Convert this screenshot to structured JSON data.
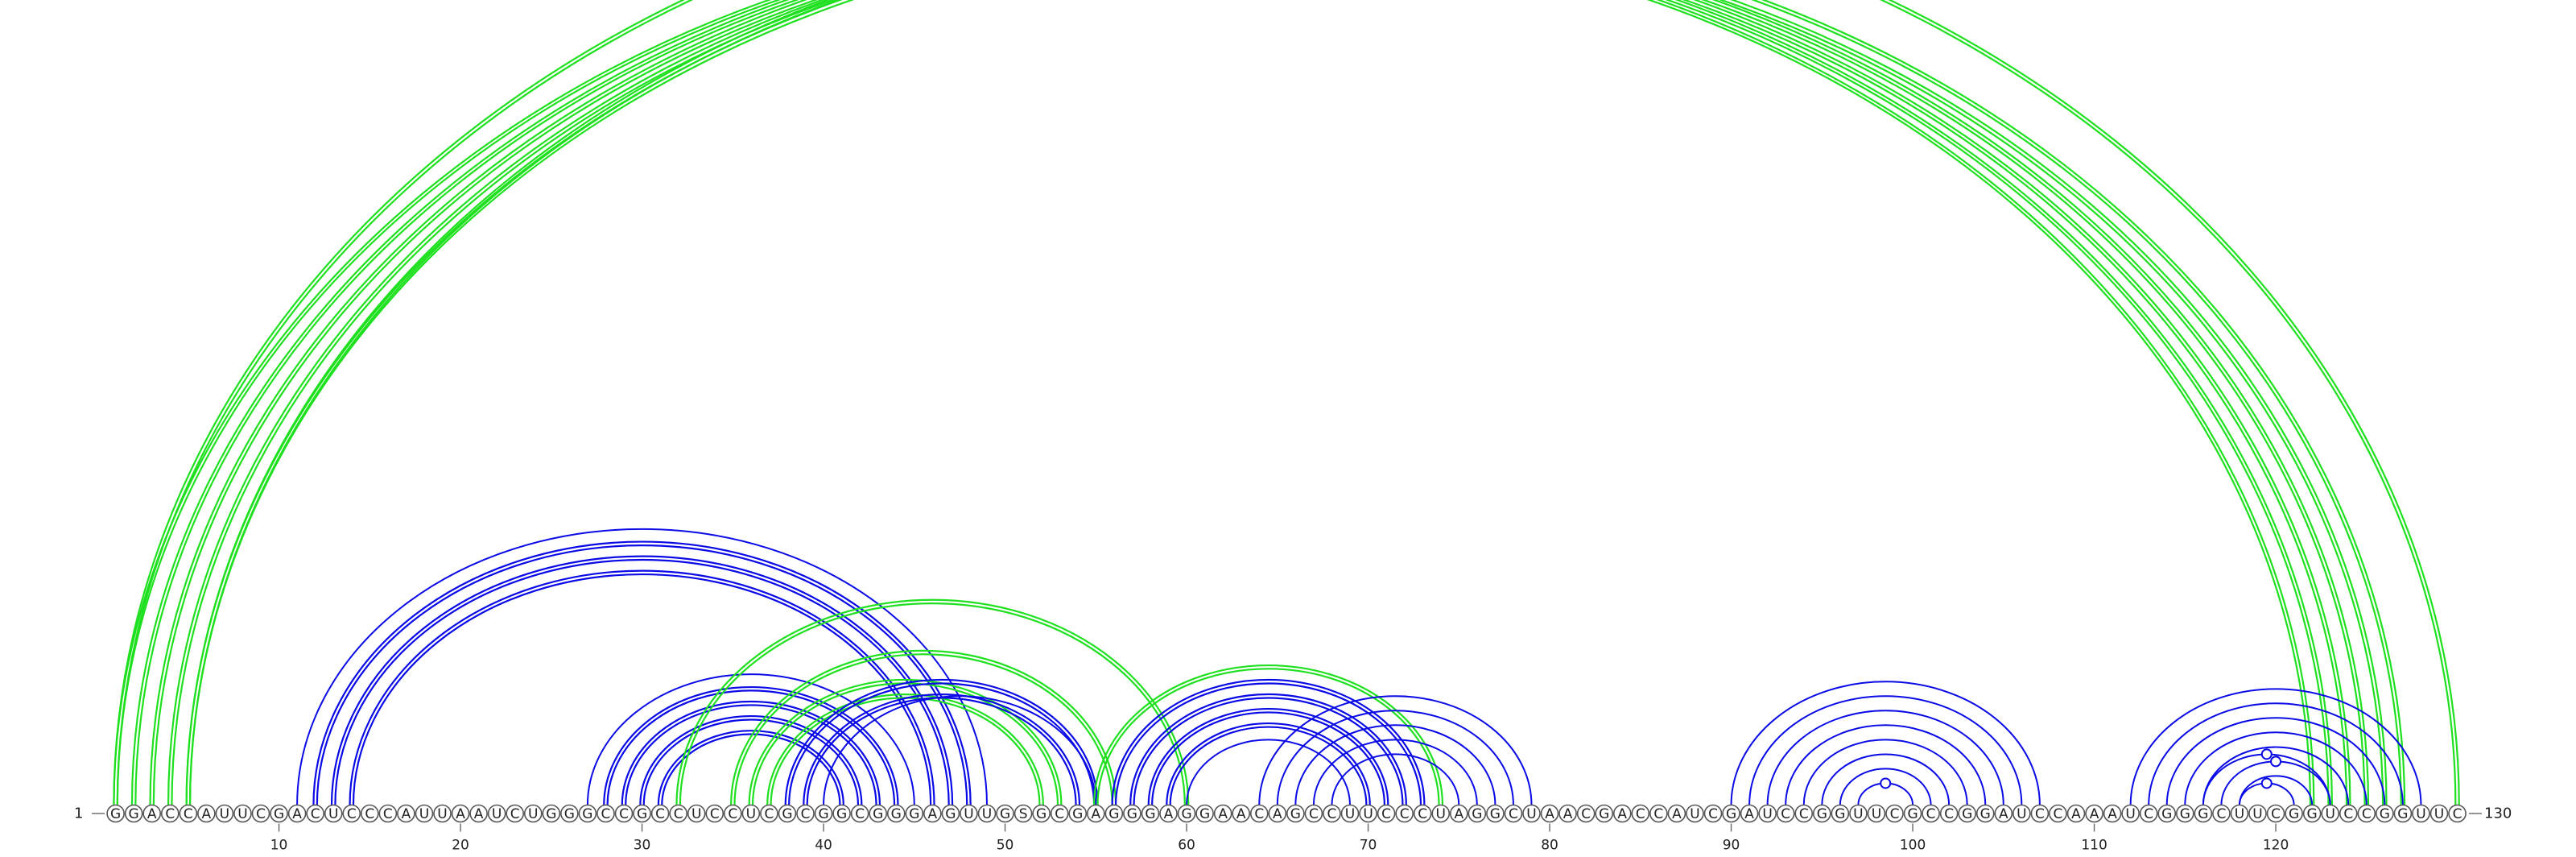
{
  "sequence": "GGACCAUUCGACUCCCAUUAAUCUGGGCCGCCUCCUCGCGGCGGGAGUUGSGCGAGGGAGGAACAGCCUUCCCUAGGCUAACGACCAUCGAUCCGGUUCGCCGGAUCCAAAUCGGGCUUCGGUCCGGUUC",
  "start_label": "1",
  "end_label": "130",
  "tick_positions": [
    10,
    20,
    30,
    40,
    50,
    60,
    70,
    80,
    90,
    100,
    110,
    120
  ],
  "colors": {
    "upper": "#1fe01f",
    "lower_blue": "#0a0ae6",
    "lower_green": "#1fe01f"
  },
  "upper_arcs": [
    {
      "i": 1,
      "j": 122,
      "double": true
    },
    {
      "i": 2,
      "j": 123,
      "double": true
    },
    {
      "i": 3,
      "j": 124,
      "double": true
    },
    {
      "i": 4,
      "j": 125,
      "double": true
    },
    {
      "i": 5,
      "j": 126,
      "double": true
    },
    {
      "i": 5,
      "j": 127,
      "double": true
    },
    {
      "i": 1,
      "j": 130,
      "double": true,
      "marker": true
    }
  ],
  "lower_arcs": [
    {
      "i": 11,
      "j": 49,
      "color": "blue"
    },
    {
      "i": 12,
      "j": 48,
      "color": "blue",
      "double": true
    },
    {
      "i": 13,
      "j": 47,
      "color": "blue",
      "double": true
    },
    {
      "i": 14,
      "j": 46,
      "color": "blue",
      "double": true
    },
    {
      "i": 27,
      "j": 45,
      "color": "blue"
    },
    {
      "i": 28,
      "j": 44,
      "color": "blue",
      "double": true
    },
    {
      "i": 29,
      "j": 43,
      "color": "blue",
      "double": true
    },
    {
      "i": 30,
      "j": 42,
      "color": "blue",
      "double": true
    },
    {
      "i": 31,
      "j": 41,
      "color": "blue",
      "double": true
    },
    {
      "i": 32,
      "j": 60,
      "color": "green",
      "double": true
    },
    {
      "i": 35,
      "j": 56,
      "color": "green",
      "double": true
    },
    {
      "i": 36,
      "j": 53,
      "color": "green",
      "double": true
    },
    {
      "i": 37,
      "j": 52,
      "color": "green",
      "double": true
    },
    {
      "i": 38,
      "j": 55,
      "color": "blue",
      "double": true
    },
    {
      "i": 39,
      "j": 54,
      "color": "blue",
      "double": true
    },
    {
      "i": 40,
      "j": 55,
      "color": "blue"
    },
    {
      "i": 55,
      "j": 74,
      "color": "green",
      "double": true
    },
    {
      "i": 56,
      "j": 73,
      "color": "blue",
      "double": true
    },
    {
      "i": 57,
      "j": 72,
      "color": "blue",
      "double": true
    },
    {
      "i": 58,
      "j": 71,
      "color": "blue",
      "double": true
    },
    {
      "i": 59,
      "j": 70,
      "color": "blue",
      "double": true
    },
    {
      "i": 60,
      "j": 69,
      "color": "blue"
    },
    {
      "i": 64,
      "j": 79,
      "color": "blue"
    },
    {
      "i": 65,
      "j": 78,
      "color": "blue"
    },
    {
      "i": 66,
      "j": 77,
      "color": "blue"
    },
    {
      "i": 67,
      "j": 76,
      "color": "blue"
    },
    {
      "i": 68,
      "j": 75,
      "color": "blue"
    },
    {
      "i": 90,
      "j": 107,
      "color": "blue"
    },
    {
      "i": 91,
      "j": 106,
      "color": "blue"
    },
    {
      "i": 92,
      "j": 105,
      "color": "blue"
    },
    {
      "i": 93,
      "j": 104,
      "color": "blue"
    },
    {
      "i": 94,
      "j": 103,
      "color": "blue"
    },
    {
      "i": 95,
      "j": 102,
      "color": "blue"
    },
    {
      "i": 96,
      "j": 101,
      "color": "blue"
    },
    {
      "i": 97,
      "j": 100,
      "color": "blue",
      "marker": true
    },
    {
      "i": 112,
      "j": 128,
      "color": "blue"
    },
    {
      "i": 113,
      "j": 127,
      "color": "blue"
    },
    {
      "i": 114,
      "j": 126,
      "color": "blue"
    },
    {
      "i": 115,
      "j": 125,
      "color": "blue"
    },
    {
      "i": 116,
      "j": 124,
      "color": "blue"
    },
    {
      "i": 117,
      "j": 123,
      "color": "blue",
      "marker": true
    },
    {
      "i": 118,
      "j": 122,
      "color": "blue"
    },
    {
      "i": 118,
      "j": 121,
      "color": "blue",
      "marker": true
    },
    {
      "i": 116,
      "j": 123,
      "color": "blue",
      "marker": true
    }
  ]
}
